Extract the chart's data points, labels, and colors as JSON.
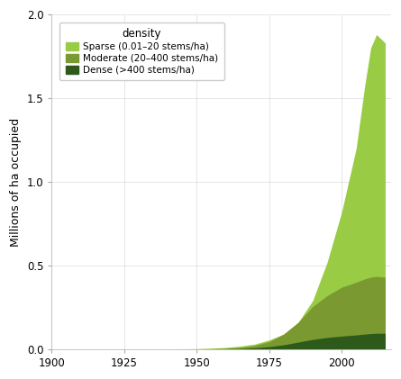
{
  "ylabel": "Millions of ha occupied",
  "xlabel": "",
  "xlim": [
    1900,
    2017
  ],
  "ylim": [
    0.0,
    2.0
  ],
  "yticks": [
    0.0,
    0.5,
    1.0,
    1.5,
    2.0
  ],
  "xticks": [
    1900,
    1925,
    1950,
    1975,
    2000
  ],
  "color_sparse": "#99cc44",
  "color_moderate": "#7a9930",
  "color_dense": "#2d5a1b",
  "legend_title": "density",
  "label_sparse": "Sparse (0.01–20 stems/ha)",
  "label_moderate": "Moderate (20–400 stems/ha)",
  "label_dense": "Dense (>400 stems/ha)",
  "years": [
    1900,
    1910,
    1920,
    1930,
    1940,
    1950,
    1955,
    1960,
    1965,
    1970,
    1975,
    1980,
    1985,
    1990,
    1995,
    2000,
    2005,
    2008,
    2010,
    2012,
    2015
  ],
  "sparse": [
    0.0,
    0.0,
    0.0,
    0.0,
    0.0,
    0.003,
    0.006,
    0.01,
    0.018,
    0.03,
    0.055,
    0.09,
    0.16,
    0.29,
    0.52,
    0.82,
    1.2,
    1.58,
    1.8,
    1.88,
    1.83
  ],
  "moderate": [
    0.0,
    0.0,
    0.0,
    0.0,
    0.0,
    0.001,
    0.002,
    0.005,
    0.01,
    0.022,
    0.045,
    0.09,
    0.16,
    0.255,
    0.32,
    0.37,
    0.4,
    0.42,
    0.43,
    0.435,
    0.43
  ],
  "dense": [
    0.0,
    0.0,
    0.0,
    0.0,
    0.0,
    0.0,
    0.001,
    0.002,
    0.004,
    0.008,
    0.015,
    0.026,
    0.042,
    0.058,
    0.07,
    0.078,
    0.085,
    0.09,
    0.093,
    0.095,
    0.095
  ],
  "background_color": "#ffffff",
  "grid_color": "#e0e0e0",
  "ylabel_fontsize": 9,
  "tick_fontsize": 8.5
}
